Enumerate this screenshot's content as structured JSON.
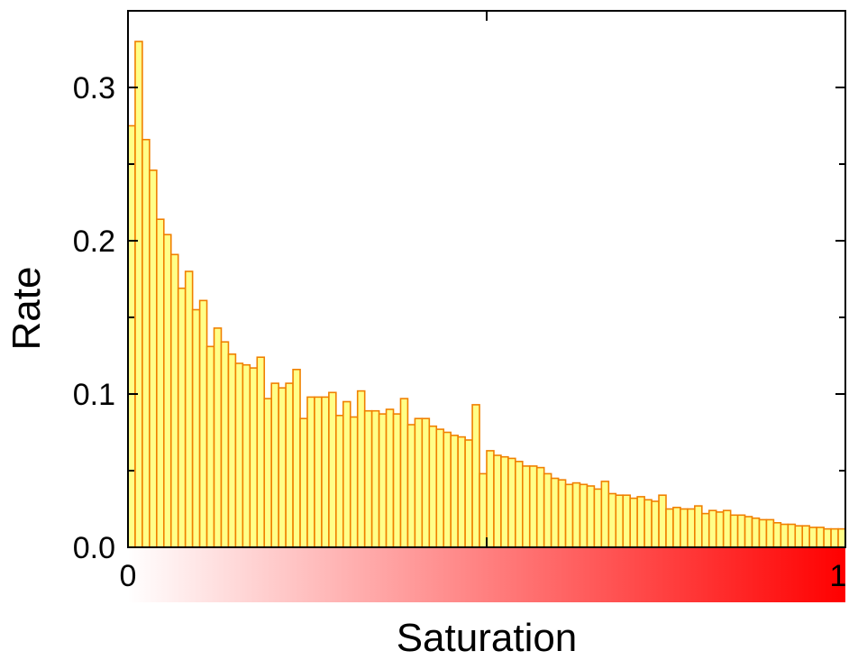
{
  "chart_data": {
    "type": "bar",
    "title": "",
    "xlabel": "Saturation",
    "ylabel": "Rate",
    "xlim": [
      0,
      1
    ],
    "ylim": [
      0,
      0.35
    ],
    "yticks": [
      0.0,
      0.1,
      0.2,
      0.3
    ],
    "ytick_labels": [
      "0.0",
      "0.1",
      "0.2",
      "0.3"
    ],
    "xtick_labels": [
      {
        "value": 0,
        "label": "0"
      },
      {
        "value": 1,
        "label": "1"
      }
    ],
    "grid": false,
    "bin_width": 0.01,
    "colors": {
      "bar_fill": "#ffff88",
      "bar_edge": "#f08000",
      "gradient_start": "#ffffff",
      "gradient_end": "#ff0000"
    },
    "values": [
      0.275,
      0.33,
      0.266,
      0.246,
      0.214,
      0.204,
      0.191,
      0.169,
      0.18,
      0.155,
      0.161,
      0.131,
      0.143,
      0.134,
      0.126,
      0.12,
      0.119,
      0.117,
      0.124,
      0.097,
      0.107,
      0.104,
      0.107,
      0.116,
      0.084,
      0.098,
      0.098,
      0.098,
      0.101,
      0.086,
      0.095,
      0.085,
      0.102,
      0.089,
      0.089,
      0.087,
      0.09,
      0.087,
      0.097,
      0.08,
      0.084,
      0.084,
      0.079,
      0.077,
      0.075,
      0.073,
      0.072,
      0.07,
      0.093,
      0.048,
      0.063,
      0.06,
      0.059,
      0.058,
      0.056,
      0.053,
      0.053,
      0.052,
      0.048,
      0.045,
      0.044,
      0.041,
      0.042,
      0.041,
      0.04,
      0.038,
      0.043,
      0.035,
      0.034,
      0.034,
      0.032,
      0.033,
      0.031,
      0.03,
      0.034,
      0.025,
      0.026,
      0.025,
      0.025,
      0.027,
      0.022,
      0.024,
      0.023,
      0.024,
      0.021,
      0.021,
      0.02,
      0.019,
      0.018,
      0.018,
      0.016,
      0.015,
      0.015,
      0.014,
      0.014,
      0.013,
      0.013,
      0.012,
      0.012,
      0.012
    ]
  }
}
